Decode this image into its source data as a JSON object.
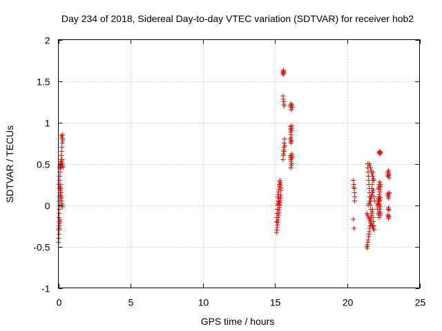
{
  "chart_data": {
    "type": "scatter",
    "title": "Day 234 of 2018, Sidereal Day-to-day VTEC variation (SDTVAR) for receiver hob2",
    "xlabel": "GPS time / hours",
    "ylabel": "SDTVAR / TECUs",
    "xlim": [
      0,
      25
    ],
    "ylim": [
      -1,
      2
    ],
    "xticks": [
      0,
      5,
      10,
      15,
      20,
      25
    ],
    "xtick_labels": [
      "0",
      "5",
      "10",
      "15",
      "20",
      "25"
    ],
    "yticks": [
      -1,
      -0.5,
      0,
      0.5,
      1,
      1.5,
      2
    ],
    "ytick_labels": [
      "-1",
      "-0.5",
      "0",
      "0.5",
      "1",
      "1.5",
      "2"
    ],
    "grid": true,
    "marker": "plus",
    "marker_color": "#ff0000",
    "series": [
      {
        "name": "SDTVAR",
        "x": [
          0.02,
          0.03,
          0.04,
          0.05,
          0.06,
          0.07,
          0.08,
          0.05,
          0.06,
          0.07,
          0.08,
          0.09,
          0.1,
          0.11,
          0.12,
          0.13,
          0.14,
          0.15,
          0.16,
          0.17,
          0.18,
          0.2,
          0.22,
          0.24,
          0.08,
          0.1,
          0.12,
          0.14,
          0.16,
          0.18,
          0.2,
          0.22,
          0.24,
          0.26,
          0.28,
          0.3,
          0.1,
          0.12,
          0.14,
          0.16,
          0.18,
          0.2,
          0.22,
          0.24,
          0.26,
          0.28,
          0.3,
          0.32,
          0.06,
          0.08,
          0.1,
          0.12,
          0.14,
          0.16,
          0.18,
          0.2,
          0.22,
          0.24,
          0.26,
          0.28,
          0.02,
          0.04,
          0.06,
          0.08,
          0.1,
          0.12,
          0.2,
          0.25,
          0.28,
          0.3,
          15.1,
          15.12,
          15.14,
          15.16,
          15.18,
          15.2,
          15.22,
          15.24,
          15.26,
          15.28,
          15.3,
          15.32,
          15.34,
          15.36,
          15.38,
          15.4,
          15.2,
          15.22,
          15.24,
          15.26,
          15.28,
          15.3,
          15.32,
          15.34,
          15.36,
          15.38,
          15.4,
          15.42,
          15.1,
          15.12,
          15.14,
          15.16,
          15.18,
          15.2,
          15.22,
          15.24,
          15.26,
          15.28,
          15.55,
          15.56,
          15.57,
          15.58,
          15.59,
          15.6,
          15.55,
          15.57,
          15.59,
          15.61,
          15.63,
          15.55,
          15.57,
          15.59,
          15.61,
          15.63,
          15.65,
          15.67,
          15.58,
          15.6,
          15.62,
          15.64,
          16.05,
          16.08,
          16.1,
          16.12,
          16.15,
          16.18,
          16.2,
          16.05,
          16.07,
          16.09,
          16.11,
          16.13,
          16.15,
          16.17,
          16.05,
          16.08,
          16.1,
          16.12,
          16.15,
          16.05,
          16.07,
          16.09,
          16.11,
          16.13,
          16.15,
          16.17,
          16.19,
          16.1,
          16.12,
          16.14,
          20.42,
          20.45,
          20.48,
          20.5,
          20.52,
          20.42,
          20.46,
          20.5,
          20.44,
          21.35,
          21.38,
          21.4,
          21.42,
          21.45,
          21.48,
          21.5,
          21.52,
          21.55,
          21.58,
          21.6,
          21.62,
          21.65,
          21.68,
          21.7,
          21.72,
          21.75,
          21.78,
          21.8,
          21.82,
          21.4,
          21.42,
          21.44,
          21.46,
          21.48,
          21.5,
          21.52,
          21.54,
          21.56,
          21.58,
          21.6,
          21.62,
          21.64,
          21.66,
          21.68,
          21.7,
          21.72,
          21.74,
          21.76,
          21.78,
          21.45,
          21.5,
          21.55,
          21.6,
          21.65,
          21.7,
          21.75,
          21.8,
          21.85,
          21.9,
          21.35,
          21.4,
          21.45,
          21.5,
          21.55,
          21.6,
          21.65,
          21.7,
          21.75,
          21.8,
          21.85,
          21.5,
          21.55,
          21.6,
          21.65,
          21.7,
          21.75,
          21.8,
          21.85,
          22.1,
          22.12,
          22.14,
          22.16,
          22.18,
          22.2,
          22.22,
          22.24,
          22.26,
          22.28,
          22.3,
          22.1,
          22.12,
          22.14,
          22.16,
          22.18,
          22.2,
          22.22,
          22.24,
          22.26,
          22.28,
          22.3,
          22.15,
          22.18,
          22.2,
          22.22,
          22.25,
          22.28,
          22.2,
          22.22,
          22.24,
          22.26,
          22.28,
          22.3,
          22.15,
          22.18,
          22.2,
          22.24,
          22.28,
          22.22,
          22.25,
          22.28,
          22.8,
          22.82,
          22.84,
          22.86,
          22.88,
          22.9,
          22.8,
          22.82,
          22.84,
          22.86,
          22.88,
          22.9,
          22.8,
          22.83,
          22.86,
          22.89,
          22.82,
          22.85,
          22.88,
          22.8,
          22.84
        ],
        "y": [
          -0.45,
          -0.4,
          -0.35,
          -0.3,
          -0.28,
          -0.25,
          -0.2,
          -0.15,
          -0.1,
          -0.05,
          0.0,
          0.05,
          0.1,
          0.12,
          0.15,
          0.18,
          0.2,
          0.22,
          0.25,
          0.2,
          0.15,
          0.1,
          0.05,
          0.0,
          0.3,
          0.35,
          0.4,
          0.45,
          0.5,
          0.55,
          0.6,
          0.65,
          0.7,
          0.75,
          0.8,
          0.85,
          0.45,
          0.47,
          0.5,
          0.52,
          0.48,
          0.46,
          0.5,
          0.53,
          0.55,
          0.5,
          0.48,
          0.46,
          0.25,
          0.22,
          0.2,
          0.18,
          0.15,
          0.12,
          0.1,
          0.08,
          0.05,
          0.02,
          0.0,
          -0.02,
          -0.3,
          -0.28,
          -0.25,
          -0.22,
          -0.2,
          -0.18,
          0.84,
          0.82,
          0.8,
          0.78,
          -0.33,
          -0.3,
          -0.27,
          -0.24,
          -0.21,
          -0.18,
          -0.15,
          -0.12,
          -0.09,
          -0.06,
          -0.03,
          0.0,
          0.03,
          0.06,
          0.09,
          0.12,
          0.1,
          0.13,
          0.16,
          0.19,
          0.22,
          0.25,
          0.28,
          0.3,
          0.27,
          0.24,
          0.21,
          0.18,
          -0.2,
          -0.15,
          -0.1,
          -0.05,
          0.0,
          0.02,
          0.05,
          0.08,
          0.04,
          0.01,
          1.58,
          1.6,
          1.62,
          1.63,
          1.61,
          1.59,
          1.32,
          1.28,
          1.25,
          1.22,
          1.2,
          0.55,
          0.6,
          0.65,
          0.7,
          0.75,
          0.8,
          0.72,
          0.62,
          0.67,
          0.7,
          0.65,
          1.2,
          1.22,
          1.18,
          1.15,
          1.22,
          1.2,
          1.18,
          0.95,
          0.92,
          0.88,
          0.85,
          0.9,
          0.93,
          0.96,
          0.8,
          0.77,
          0.75,
          0.82,
          0.78,
          0.6,
          0.58,
          0.55,
          0.53,
          0.57,
          0.6,
          0.62,
          0.58,
          0.45,
          0.48,
          0.5,
          0.3,
          0.25,
          0.2,
          0.15,
          0.1,
          -0.17,
          -0.28,
          0.05,
          0.22,
          -0.5,
          -0.52,
          -0.48,
          -0.45,
          -0.42,
          -0.38,
          -0.35,
          -0.32,
          -0.28,
          -0.25,
          -0.22,
          -0.18,
          -0.15,
          -0.12,
          -0.1,
          -0.08,
          -0.05,
          -0.15,
          -0.2,
          -0.25,
          0.5,
          0.45,
          0.4,
          0.35,
          0.3,
          0.25,
          0.2,
          0.15,
          0.1,
          0.05,
          0.0,
          -0.05,
          0.05,
          0.1,
          0.15,
          0.2,
          0.25,
          0.3,
          0.35,
          0.4,
          0.0,
          0.02,
          0.05,
          0.08,
          0.1,
          0.12,
          0.15,
          0.18,
          0.1,
          0.05,
          -0.1,
          -0.12,
          -0.14,
          -0.16,
          -0.18,
          -0.2,
          -0.22,
          -0.24,
          -0.26,
          -0.28,
          -0.3,
          0.5,
          0.48,
          0.45,
          0.42,
          0.38,
          0.35,
          0.32,
          0.3,
          0.0,
          0.02,
          0.05,
          0.08,
          0.1,
          0.05,
          0.0,
          -0.05,
          -0.08,
          -0.1,
          -0.12,
          -0.05,
          -0.02,
          0.01,
          0.04,
          0.07,
          0.1,
          0.13,
          0.16,
          0.19,
          0.22,
          0.25,
          -0.1,
          -0.12,
          -0.15,
          -0.08,
          -0.05,
          -0.02,
          0.63,
          0.64,
          0.65,
          0.63,
          0.62,
          0.64,
          0.2,
          0.22,
          0.25,
          0.28,
          0.23,
          0.02,
          0.06,
          0.09,
          0.35,
          0.38,
          0.4,
          0.42,
          0.37,
          0.33,
          0.12,
          0.14,
          0.1,
          0.08,
          0.13,
          0.15,
          -0.12,
          -0.14,
          -0.16,
          -0.13,
          -0.05,
          -0.03,
          -0.06,
          0.4,
          0.36
        ]
      }
    ]
  }
}
